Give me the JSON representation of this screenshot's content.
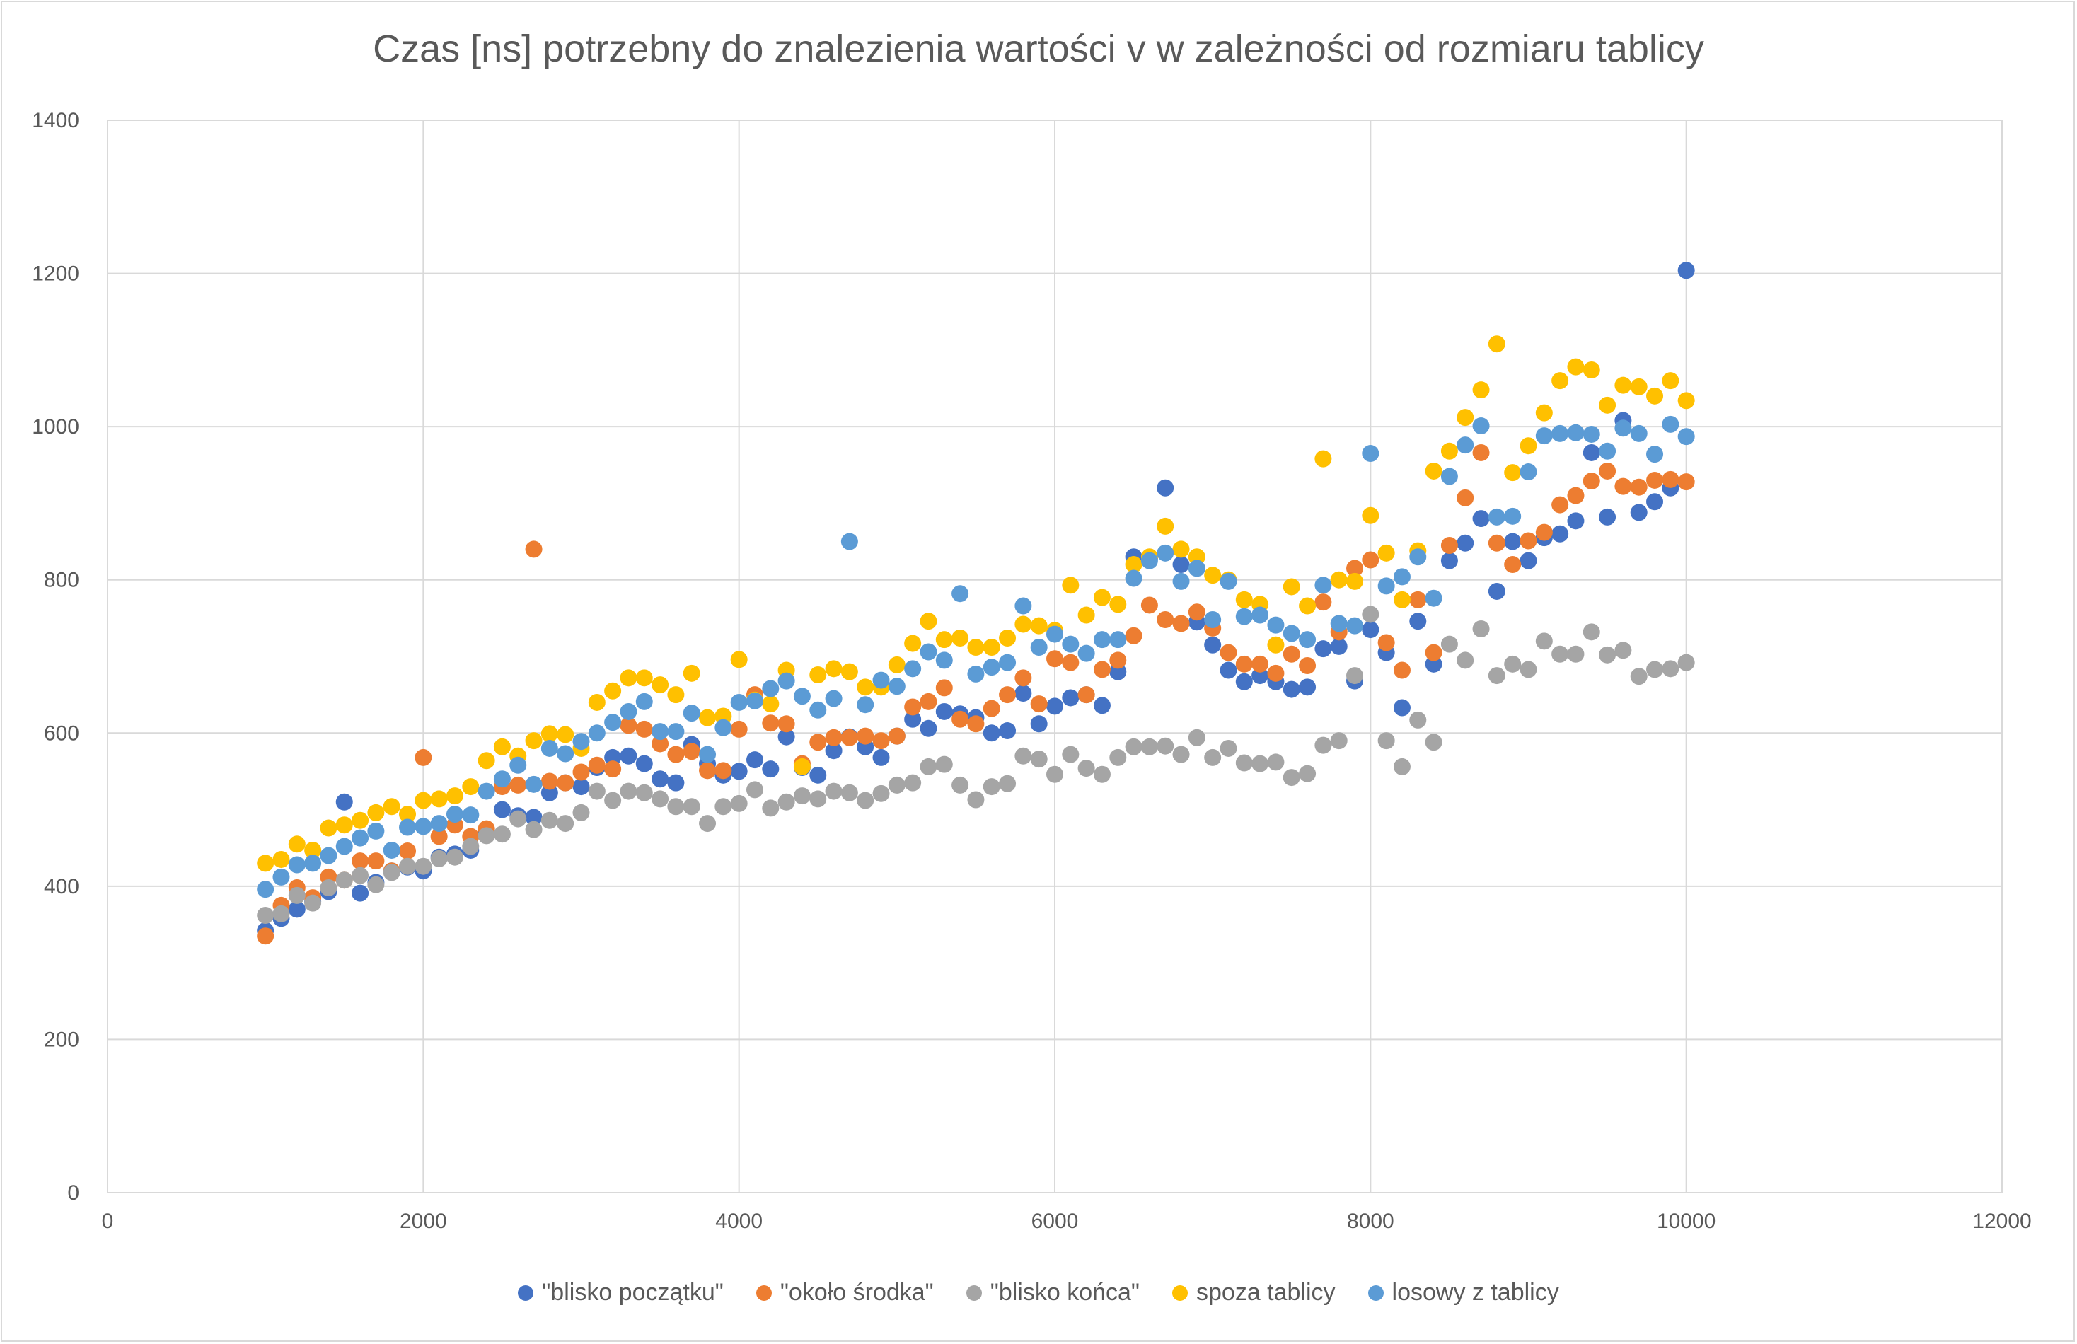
{
  "chart_data": {
    "type": "scatter",
    "title": "Czas [ns] potrzebny do znalezienia wartości v w zależności od rozmiaru tablicy",
    "xlabel": "",
    "ylabel": "",
    "xlim": [
      0,
      12000
    ],
    "ylim": [
      0,
      1400
    ],
    "x_ticks": [
      "0",
      "2000",
      "4000",
      "6000",
      "8000",
      "10000",
      "12000"
    ],
    "y_ticks": [
      "0",
      "200",
      "400",
      "600",
      "800",
      "1000",
      "1200",
      "1400"
    ],
    "grid": true,
    "legend_position": "bottom",
    "x": [
      1000,
      1100,
      1200,
      1300,
      1400,
      1500,
      1600,
      1700,
      1800,
      1900,
      2000,
      2100,
      2200,
      2300,
      2400,
      2500,
      2600,
      2700,
      2800,
      2900,
      3000,
      3100,
      3200,
      3300,
      3400,
      3500,
      3600,
      3700,
      3800,
      3900,
      4000,
      4100,
      4200,
      4300,
      4400,
      4500,
      4600,
      4700,
      4800,
      4900,
      5000,
      5100,
      5200,
      5300,
      5400,
      5500,
      5600,
      5700,
      5800,
      5900,
      6000,
      6100,
      6200,
      6300,
      6400,
      6500,
      6600,
      6700,
      6800,
      6900,
      7000,
      7100,
      7200,
      7300,
      7400,
      7500,
      7600,
      7700,
      7800,
      7900,
      8000,
      8100,
      8200,
      8300,
      8400,
      8500,
      8600,
      8700,
      8800,
      8900,
      9000,
      9100,
      9200,
      9300,
      9400,
      9500,
      9600,
      9700,
      9800,
      9900,
      10000
    ],
    "series": [
      {
        "name": "\"blisko początku\"",
        "color": "#4472c4",
        "values": [
          342,
          358,
          370,
          380,
          393,
          510,
          391,
          405,
          420,
          425,
          420,
          438,
          442,
          447,
          470,
          500,
          492,
          490,
          522,
          535,
          530,
          555,
          568,
          570,
          560,
          540,
          535,
          585,
          560,
          545,
          550,
          565,
          553,
          595,
          555,
          545,
          577,
          595,
          582,
          568,
          596,
          618,
          606,
          628,
          625,
          620,
          600,
          603,
          652,
          612,
          635,
          646,
          650,
          636,
          680,
          830,
          828,
          920,
          820,
          745,
          715,
          682,
          667,
          675,
          667,
          657,
          660,
          710,
          713,
          668,
          735,
          705,
          633,
          746,
          690,
          825,
          848,
          880,
          785,
          850,
          825,
          855,
          860,
          877,
          966,
          882,
          1008,
          888,
          902,
          920,
          1204
        ]
      },
      {
        "name": "\"około środka\"",
        "color": "#ed7d31",
        "values": [
          335,
          375,
          398,
          385,
          412,
          408,
          433,
          433,
          420,
          446,
          568,
          465,
          480,
          465,
          475,
          530,
          532,
          840,
          537,
          535,
          549,
          558,
          553,
          610,
          605,
          586,
          572,
          576,
          551,
          551,
          605,
          650,
          613,
          612,
          560,
          588,
          594,
          594,
          596,
          590,
          596,
          634,
          641,
          659,
          618,
          612,
          632,
          650,
          672,
          638,
          697,
          692,
          650,
          683,
          695,
          727,
          767,
          748,
          743,
          758,
          737,
          705,
          690,
          690,
          678,
          703,
          688,
          771,
          732,
          815,
          826,
          718,
          682,
          774,
          705,
          845,
          907,
          966,
          848,
          820,
          851,
          862,
          898,
          910,
          929,
          942,
          922,
          921,
          930,
          931,
          928
        ]
      },
      {
        "name": "\"blisko końca\"",
        "color": "#a5a5a5",
        "values": [
          362,
          364,
          388,
          378,
          398,
          408,
          414,
          402,
          418,
          426,
          426,
          436,
          438,
          452,
          466,
          468,
          488,
          474,
          486,
          482,
          496,
          524,
          512,
          524,
          522,
          514,
          504,
          504,
          482,
          504,
          508,
          526,
          502,
          510,
          518,
          514,
          524,
          522,
          512,
          521,
          532,
          535,
          556,
          559,
          532,
          513,
          530,
          534,
          570,
          566,
          546,
          572,
          554,
          546,
          568,
          582,
          582,
          583,
          572,
          594,
          568,
          580,
          561,
          560,
          562,
          542,
          547,
          584,
          590,
          675,
          755,
          590,
          556,
          617,
          588,
          716,
          695,
          736,
          675,
          690,
          683,
          720,
          703,
          703,
          732,
          702,
          708,
          674,
          683,
          684,
          692
        ]
      },
      {
        "name": "spoza tablicy",
        "color": "#ffc000",
        "values": [
          430,
          435,
          455,
          447,
          476,
          480,
          486,
          496,
          504,
          494,
          512,
          514,
          518,
          530,
          564,
          582,
          570,
          590,
          599,
          598,
          580,
          640,
          655,
          672,
          672,
          663,
          650,
          678,
          620,
          622,
          696,
          643,
          638,
          682,
          556,
          676,
          684,
          680,
          660,
          660,
          689,
          717,
          746,
          722,
          724,
          712,
          712,
          724,
          742,
          740,
          734,
          793,
          754,
          777,
          768,
          820,
          830,
          870,
          840,
          830,
          806,
          800,
          774,
          768,
          715,
          791,
          766,
          958,
          800,
          798,
          884,
          835,
          774,
          838,
          942,
          968,
          1012,
          1048,
          1108,
          940,
          975,
          1018,
          1060,
          1078,
          1074,
          1028,
          1054,
          1052,
          1040,
          1060,
          1034
        ]
      },
      {
        "name": "losowy z tablicy",
        "color": "#5b9bd5",
        "values": [
          396,
          412,
          428,
          430,
          440,
          452,
          463,
          472,
          447,
          477,
          478,
          482,
          494,
          493,
          524,
          540,
          558,
          533,
          580,
          573,
          589,
          600,
          614,
          628,
          641,
          602,
          602,
          626,
          572,
          607,
          640,
          642,
          658,
          668,
          648,
          630,
          645,
          850,
          637,
          669,
          661,
          684,
          706,
          695,
          782,
          677,
          686,
          692,
          766,
          712,
          729,
          716,
          704,
          722,
          722,
          802,
          825,
          835,
          798,
          815,
          748,
          798,
          752,
          754,
          741,
          730,
          722,
          793,
          743,
          740,
          965,
          792,
          804,
          830,
          776,
          935,
          976,
          1001,
          882,
          883,
          941,
          988,
          991,
          992,
          990,
          968,
          998,
          991,
          964,
          1003,
          987
        ]
      }
    ]
  }
}
